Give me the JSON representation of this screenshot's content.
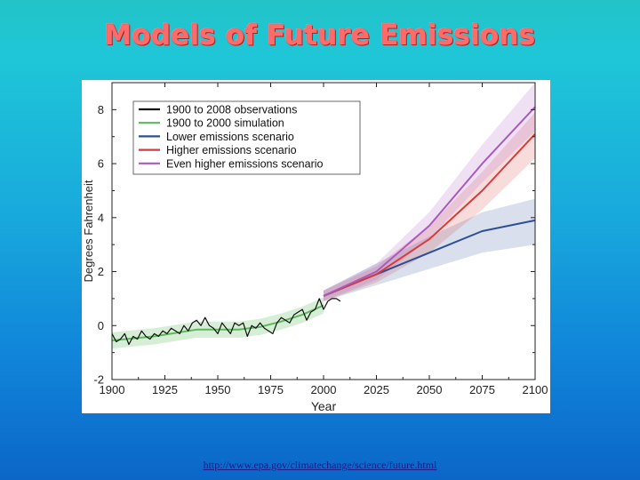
{
  "slide": {
    "title": "Models of Future Emissions",
    "source_url": "http://www.epa.gov/climatechange/science/future.html"
  },
  "colors": {
    "title": "#ff6a6a",
    "observations": "#111111",
    "simulation": "#5cb85c",
    "lower": "#2c4f94",
    "higher": "#d63c3c",
    "even_higher": "#a85bbf"
  },
  "chart_data": {
    "type": "line",
    "title": "",
    "xlabel": "Year",
    "ylabel": "Degrees Fahrenheit",
    "xlim": [
      1900,
      2100
    ],
    "ylim": [
      -2,
      9
    ],
    "xticks": [
      "1900",
      "1925",
      "1950",
      "1975",
      "2000",
      "2025",
      "2050",
      "2075",
      "2100"
    ],
    "yticks": [
      "-2",
      "0",
      "2",
      "4",
      "6",
      "8"
    ],
    "grid": false,
    "legend_position": "top-left",
    "series": [
      {
        "name": "1900 to 2008 observations",
        "key": "observations",
        "x": [
          1900,
          1902,
          1904,
          1906,
          1908,
          1910,
          1912,
          1914,
          1916,
          1918,
          1920,
          1922,
          1924,
          1926,
          1928,
          1930,
          1932,
          1934,
          1936,
          1938,
          1940,
          1942,
          1944,
          1946,
          1948,
          1950,
          1952,
          1954,
          1956,
          1958,
          1960,
          1962,
          1964,
          1966,
          1968,
          1970,
          1972,
          1974,
          1976,
          1978,
          1980,
          1982,
          1984,
          1986,
          1988,
          1990,
          1992,
          1994,
          1996,
          1998,
          2000,
          2002,
          2004,
          2006,
          2008
        ],
        "y": [
          -0.3,
          -0.6,
          -0.5,
          -0.3,
          -0.7,
          -0.4,
          -0.5,
          -0.2,
          -0.4,
          -0.5,
          -0.3,
          -0.4,
          -0.2,
          -0.3,
          -0.1,
          -0.2,
          -0.3,
          0.0,
          -0.2,
          0.1,
          0.2,
          0.0,
          0.3,
          0.0,
          -0.1,
          -0.3,
          0.1,
          -0.1,
          -0.3,
          0.1,
          0.0,
          0.1,
          -0.4,
          0.0,
          -0.1,
          0.1,
          -0.1,
          -0.2,
          -0.3,
          0.1,
          0.3,
          0.2,
          0.1,
          0.4,
          0.5,
          0.6,
          0.2,
          0.5,
          0.6,
          1.0,
          0.6,
          0.9,
          1.0,
          1.0,
          0.9
        ]
      },
      {
        "name": "1900 to 2000 simulation",
        "key": "simulation",
        "x": [
          1900,
          1920,
          1940,
          1960,
          1970,
          1980,
          1990,
          2000
        ],
        "y": [
          -0.55,
          -0.4,
          -0.15,
          -0.15,
          -0.05,
          0.15,
          0.4,
          0.75
        ],
        "band": 0.3
      },
      {
        "name": "Lower emissions scenario",
        "key": "lower",
        "x": [
          2000,
          2025,
          2050,
          2075,
          2100
        ],
        "y": [
          1.1,
          1.9,
          2.7,
          3.5,
          3.9
        ],
        "band_low": [
          0.9,
          1.5,
          2.1,
          2.7,
          3.0
        ],
        "band_high": [
          1.3,
          2.3,
          3.3,
          4.2,
          4.7
        ]
      },
      {
        "name": "Higher emissions scenario",
        "key": "higher",
        "x": [
          2000,
          2025,
          2050,
          2075,
          2100
        ],
        "y": [
          1.1,
          1.9,
          3.2,
          5.0,
          7.1
        ],
        "band_low": [
          0.9,
          1.6,
          2.7,
          4.3,
          6.2
        ],
        "band_high": [
          1.3,
          2.2,
          3.7,
          5.7,
          7.9
        ]
      },
      {
        "name": "Even higher emissions scenario",
        "key": "even_higher",
        "x": [
          2000,
          2025,
          2050,
          2075,
          2100
        ],
        "y": [
          1.1,
          2.0,
          3.7,
          6.0,
          8.1
        ],
        "band_low": [
          0.9,
          1.7,
          3.2,
          5.3,
          7.2
        ],
        "band_high": [
          1.3,
          2.3,
          4.2,
          6.7,
          9.0
        ]
      }
    ]
  }
}
